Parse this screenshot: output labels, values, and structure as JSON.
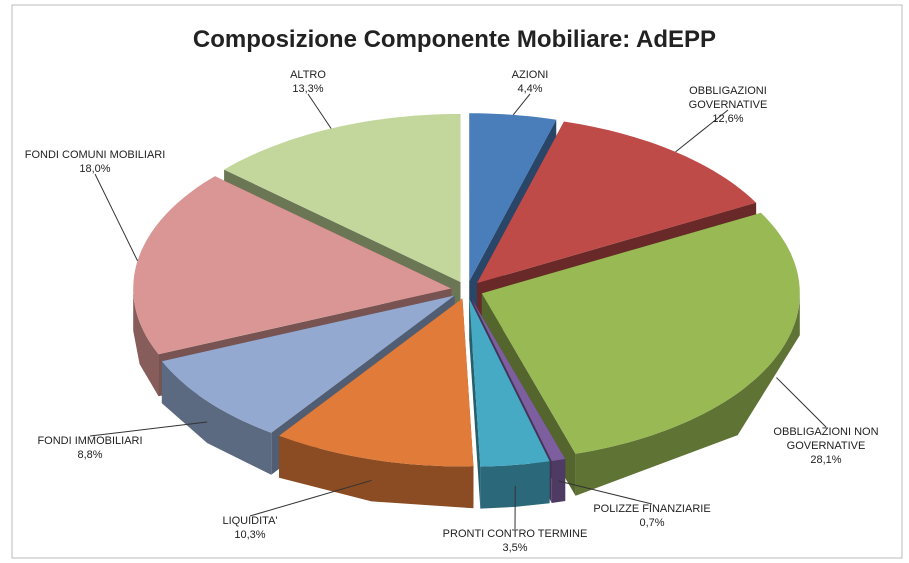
{
  "chart_data": {
    "type": "pie3d",
    "title": "Composizione Componente Mobiliare: AdEPP",
    "categories": [
      "AZIONI",
      "OBBLIGAZIONI GOVERNATIVE",
      "OBBLIGAZIONI NON GOVERNATIVE",
      "POLIZZE FINANZIARIE",
      "PRONTI CONTRO TERMINE",
      "LIQUIDITA'",
      "FONDI IMMOBILIARI",
      "FONDI COMUNI MOBILIARI",
      "ALTRO"
    ],
    "values": [
      4.4,
      12.6,
      28.1,
      0.7,
      3.5,
      10.3,
      8.8,
      18.0,
      13.3
    ],
    "value_labels": [
      "4,4%",
      "12,6%",
      "28,1%",
      "0,7%",
      "3,5%",
      "10,3%",
      "8,8%",
      "18,0%",
      "13,3%"
    ],
    "colors": [
      "#4a7ebb",
      "#be4b48",
      "#98b954",
      "#7d5fa0",
      "#46aac5",
      "#e07b39",
      "#93a9d0",
      "#d99694",
      "#c3d69b"
    ]
  }
}
